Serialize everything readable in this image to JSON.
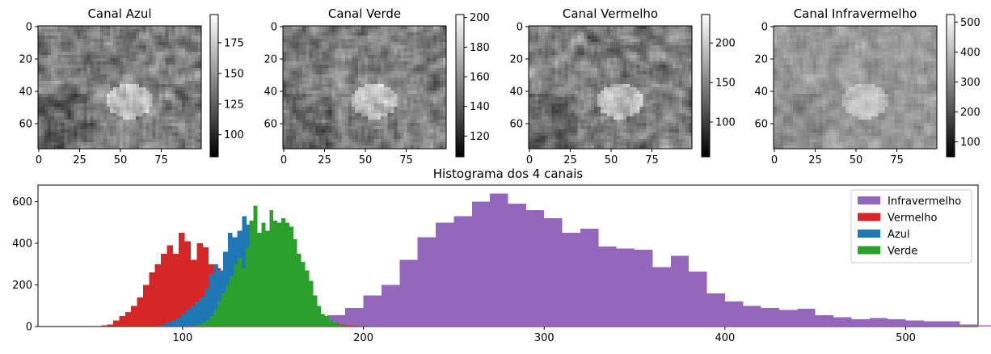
{
  "chart_data": [
    {
      "type": "heatmap",
      "title": "Canal Azul",
      "x_ticks": [
        0,
        25,
        50,
        75
      ],
      "y_ticks": [
        0,
        20,
        40,
        60
      ],
      "xlim": [
        -0.5,
        99.5
      ],
      "ylim": [
        75.5,
        -0.5
      ],
      "colormap": "gray",
      "colorbar": {
        "range": [
          82,
          198
        ],
        "ticks": [
          100,
          125,
          150,
          175
        ]
      }
    },
    {
      "type": "heatmap",
      "title": "Canal Verde",
      "x_ticks": [
        0,
        25,
        50,
        75
      ],
      "y_ticks": [
        0,
        20,
        40,
        60
      ],
      "xlim": [
        -0.5,
        99.5
      ],
      "ylim": [
        75.5,
        -0.5
      ],
      "colormap": "gray",
      "colorbar": {
        "range": [
          106,
          202
        ],
        "ticks": [
          120,
          140,
          160,
          180,
          200
        ]
      }
    },
    {
      "type": "heatmap",
      "title": "Canal Vermelho",
      "x_ticks": [
        0,
        25,
        50,
        75
      ],
      "y_ticks": [
        0,
        20,
        40,
        60
      ],
      "xlim": [
        -0.5,
        99.5
      ],
      "ylim": [
        75.5,
        -0.5
      ],
      "colormap": "gray",
      "colorbar": {
        "range": [
          56,
          236
        ],
        "ticks": [
          100,
          150,
          200
        ]
      }
    },
    {
      "type": "heatmap",
      "title": "Canal Infravermelho",
      "x_ticks": [
        0,
        25,
        50,
        75
      ],
      "y_ticks": [
        0,
        20,
        40,
        60
      ],
      "xlim": [
        -0.5,
        99.5
      ],
      "ylim": [
        75.5,
        -0.5
      ],
      "colormap": "gray",
      "colorbar": {
        "range": [
          50,
          525
        ],
        "ticks": [
          100,
          200,
          300,
          400,
          500
        ]
      }
    },
    {
      "type": "bar",
      "subtype": "histogram",
      "title": "Histograma dos 4 canais",
      "xlim": [
        20,
        540
      ],
      "ylim": [
        0,
        680
      ],
      "x_ticks": [
        100,
        200,
        300,
        400,
        500
      ],
      "y_ticks": [
        0,
        200,
        400,
        600
      ],
      "legend_position": "top-right",
      "series": [
        {
          "name": "Infravermelho",
          "color": "#9467bd",
          "bin_start": 60,
          "bin_width": 10,
          "values": [
            3,
            5,
            8,
            12,
            16,
            20,
            24,
            30,
            35,
            40,
            45,
            50,
            55,
            90,
            150,
            200,
            320,
            430,
            500,
            530,
            600,
            640,
            590,
            560,
            520,
            450,
            470,
            385,
            375,
            370,
            285,
            340,
            265,
            160,
            120,
            100,
            90,
            80,
            85,
            55,
            45,
            35,
            40,
            35,
            30,
            25,
            25,
            10,
            6,
            3,
            2,
            1,
            1,
            0,
            0,
            0,
            0,
            0,
            0,
            0,
            0,
            0,
            0,
            0,
            0,
            0,
            0,
            0,
            0,
            0,
            0,
            0,
            0,
            0,
            0,
            0,
            0,
            0,
            0
          ]
        },
        {
          "name": "Vermelho",
          "color": "#d62728",
          "bin_start": 55,
          "bin_width": 3.3,
          "values": [
            5,
            10,
            30,
            50,
            70,
            100,
            140,
            200,
            260,
            300,
            350,
            390,
            350,
            450,
            410,
            320,
            400,
            380,
            300,
            280,
            220,
            160,
            130,
            80,
            60,
            40,
            50,
            30,
            40,
            50,
            30,
            60,
            80,
            90,
            70,
            60,
            40,
            30,
            20,
            15,
            10,
            5,
            3,
            2,
            1
          ]
        },
        {
          "name": "Azul",
          "color": "#1f77b4",
          "bin_start": 86,
          "bin_width": 2.6,
          "values": [
            5,
            10,
            20,
            30,
            40,
            60,
            80,
            100,
            120,
            140,
            180,
            250,
            300,
            270,
            360,
            450,
            430,
            460,
            530,
            490,
            330,
            230,
            160,
            180,
            260,
            180,
            120,
            80,
            50,
            30,
            20,
            10,
            5,
            3,
            2,
            1
          ]
        },
        {
          "name": "Verde",
          "color": "#2ca02c",
          "bin_start": 104,
          "bin_width": 2.2,
          "values": [
            2,
            5,
            10,
            20,
            30,
            50,
            80,
            120,
            160,
            200,
            240,
            300,
            330,
            280,
            380,
            510,
            580,
            450,
            500,
            460,
            560,
            510,
            500,
            520,
            500,
            480,
            420,
            350,
            310,
            270,
            220,
            150,
            100,
            60,
            50,
            30,
            20,
            10,
            5,
            3,
            1
          ]
        }
      ]
    }
  ]
}
